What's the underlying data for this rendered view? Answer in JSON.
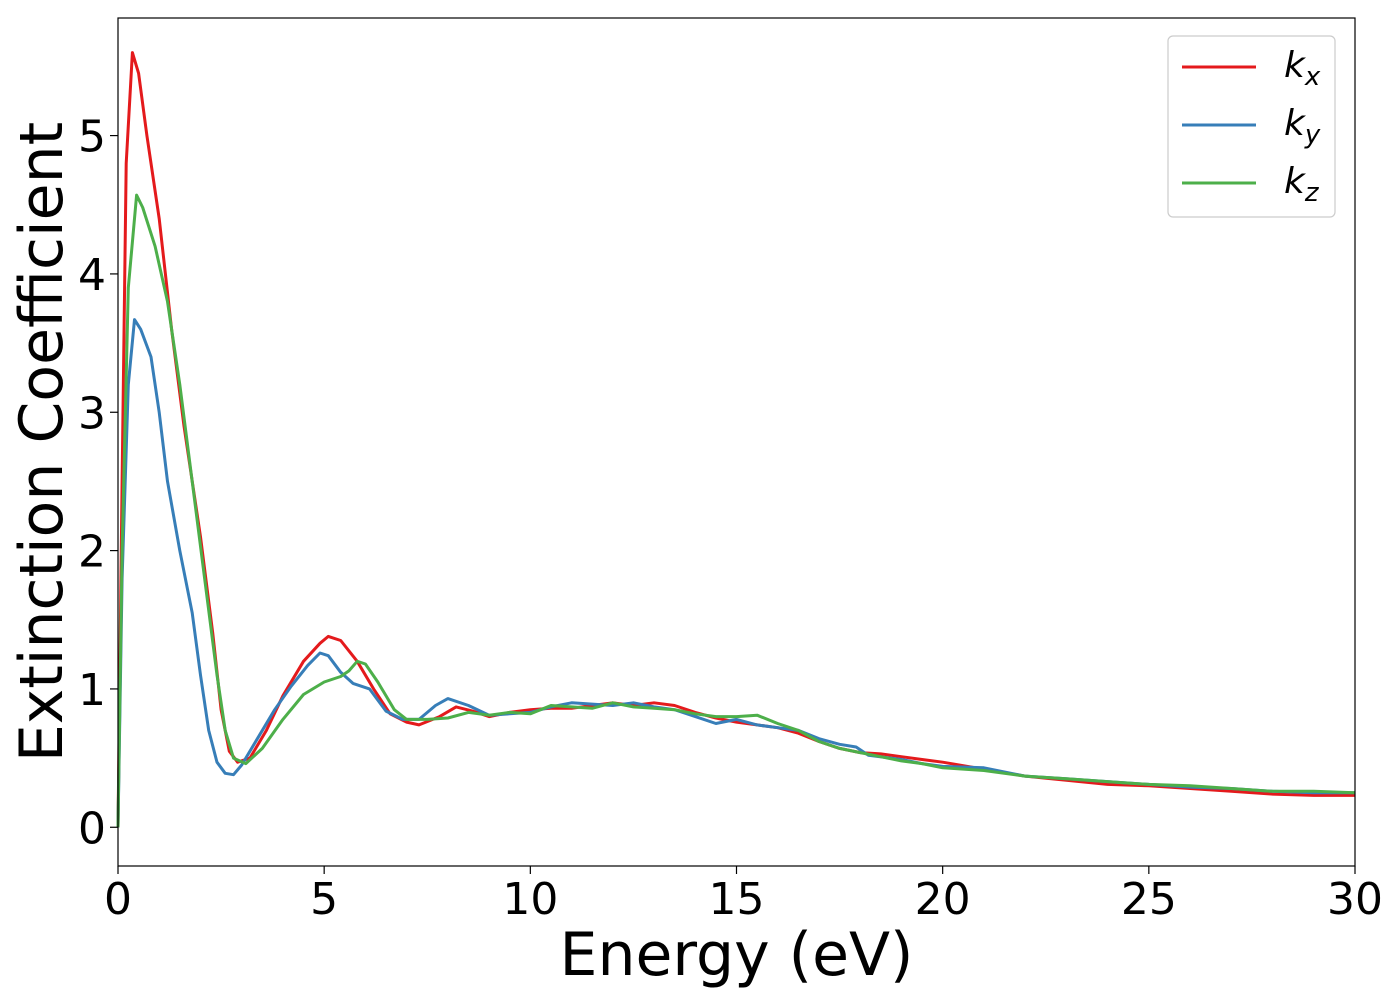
{
  "chart_data": {
    "type": "line",
    "xlabel": "Energy (eV)",
    "ylabel": "Extinction Coefficient",
    "xlim": [
      0,
      30
    ],
    "ylim": [
      -0.28,
      5.85
    ],
    "xticks": [
      0,
      5,
      10,
      15,
      20,
      25,
      30
    ],
    "yticks": [
      0,
      1,
      2,
      3,
      4,
      5
    ],
    "grid": false,
    "legend_position": "top-right",
    "series": [
      {
        "name": "k_x",
        "base": "k",
        "sub": "x",
        "color": "#e41a1c",
        "points": [
          [
            0,
            0
          ],
          [
            0.1,
            2.5
          ],
          [
            0.2,
            4.8
          ],
          [
            0.35,
            5.6
          ],
          [
            0.5,
            5.45
          ],
          [
            0.7,
            5.0
          ],
          [
            1.0,
            4.4
          ],
          [
            1.3,
            3.6
          ],
          [
            1.6,
            2.9
          ],
          [
            2.0,
            2.1
          ],
          [
            2.3,
            1.4
          ],
          [
            2.5,
            0.85
          ],
          [
            2.7,
            0.55
          ],
          [
            2.9,
            0.47
          ],
          [
            3.2,
            0.5
          ],
          [
            3.6,
            0.7
          ],
          [
            4.0,
            0.95
          ],
          [
            4.5,
            1.2
          ],
          [
            4.9,
            1.33
          ],
          [
            5.1,
            1.38
          ],
          [
            5.4,
            1.35
          ],
          [
            5.8,
            1.2
          ],
          [
            6.2,
            1.0
          ],
          [
            6.6,
            0.82
          ],
          [
            7.0,
            0.76
          ],
          [
            7.3,
            0.74
          ],
          [
            7.8,
            0.8
          ],
          [
            8.2,
            0.87
          ],
          [
            8.6,
            0.84
          ],
          [
            9.0,
            0.8
          ],
          [
            9.5,
            0.83
          ],
          [
            10.0,
            0.85
          ],
          [
            10.5,
            0.86
          ],
          [
            11.0,
            0.86
          ],
          [
            11.5,
            0.88
          ],
          [
            12.0,
            0.9
          ],
          [
            12.5,
            0.88
          ],
          [
            13.0,
            0.9
          ],
          [
            13.5,
            0.88
          ],
          [
            14.0,
            0.83
          ],
          [
            14.5,
            0.79
          ],
          [
            15.0,
            0.76
          ],
          [
            15.5,
            0.74
          ],
          [
            16.0,
            0.72
          ],
          [
            16.5,
            0.68
          ],
          [
            17.0,
            0.62
          ],
          [
            17.5,
            0.57
          ],
          [
            18.0,
            0.54
          ],
          [
            18.5,
            0.53
          ],
          [
            19.0,
            0.51
          ],
          [
            19.5,
            0.49
          ],
          [
            20.0,
            0.47
          ],
          [
            21.0,
            0.42
          ],
          [
            22.0,
            0.37
          ],
          [
            23.0,
            0.34
          ],
          [
            24.0,
            0.31
          ],
          [
            25.0,
            0.3
          ],
          [
            26.0,
            0.28
          ],
          [
            27.0,
            0.26
          ],
          [
            28.0,
            0.24
          ],
          [
            29.0,
            0.23
          ],
          [
            30.0,
            0.23
          ]
        ]
      },
      {
        "name": "k_y",
        "base": "k",
        "sub": "y",
        "color": "#377eb8",
        "points": [
          [
            0,
            0
          ],
          [
            0.1,
            1.8
          ],
          [
            0.25,
            3.2
          ],
          [
            0.4,
            3.67
          ],
          [
            0.55,
            3.6
          ],
          [
            0.8,
            3.4
          ],
          [
            1.0,
            3.0
          ],
          [
            1.2,
            2.5
          ],
          [
            1.5,
            2.0
          ],
          [
            1.8,
            1.55
          ],
          [
            2.0,
            1.1
          ],
          [
            2.2,
            0.7
          ],
          [
            2.4,
            0.47
          ],
          [
            2.6,
            0.39
          ],
          [
            2.8,
            0.38
          ],
          [
            3.0,
            0.45
          ],
          [
            3.4,
            0.65
          ],
          [
            3.8,
            0.85
          ],
          [
            4.2,
            1.02
          ],
          [
            4.6,
            1.17
          ],
          [
            4.9,
            1.26
          ],
          [
            5.1,
            1.24
          ],
          [
            5.4,
            1.12
          ],
          [
            5.7,
            1.04
          ],
          [
            6.1,
            1.0
          ],
          [
            6.5,
            0.84
          ],
          [
            6.9,
            0.78
          ],
          [
            7.3,
            0.78
          ],
          [
            7.7,
            0.88
          ],
          [
            8.0,
            0.93
          ],
          [
            8.5,
            0.88
          ],
          [
            9.0,
            0.81
          ],
          [
            9.5,
            0.82
          ],
          [
            10.0,
            0.83
          ],
          [
            10.5,
            0.87
          ],
          [
            11.0,
            0.9
          ],
          [
            11.5,
            0.89
          ],
          [
            12.0,
            0.88
          ],
          [
            12.5,
            0.9
          ],
          [
            13.0,
            0.87
          ],
          [
            13.5,
            0.85
          ],
          [
            14.0,
            0.8
          ],
          [
            14.5,
            0.75
          ],
          [
            15.0,
            0.78
          ],
          [
            15.5,
            0.74
          ],
          [
            16.0,
            0.72
          ],
          [
            16.5,
            0.7
          ],
          [
            17.0,
            0.64
          ],
          [
            17.5,
            0.6
          ],
          [
            17.9,
            0.58
          ],
          [
            18.2,
            0.52
          ],
          [
            19.0,
            0.49
          ],
          [
            19.5,
            0.46
          ],
          [
            20.0,
            0.44
          ],
          [
            21.0,
            0.43
          ],
          [
            22.0,
            0.37
          ],
          [
            23.0,
            0.35
          ],
          [
            24.0,
            0.33
          ],
          [
            25.0,
            0.31
          ],
          [
            26.0,
            0.29
          ],
          [
            27.0,
            0.28
          ],
          [
            28.0,
            0.26
          ],
          [
            29.0,
            0.25
          ],
          [
            30.0,
            0.25
          ]
        ]
      },
      {
        "name": "k_z",
        "base": "k",
        "sub": "z",
        "color": "#4daf4a",
        "points": [
          [
            0,
            0
          ],
          [
            0.1,
            2.0
          ],
          [
            0.25,
            3.9
          ],
          [
            0.45,
            4.57
          ],
          [
            0.6,
            4.48
          ],
          [
            0.9,
            4.2
          ],
          [
            1.2,
            3.8
          ],
          [
            1.5,
            3.2
          ],
          [
            1.8,
            2.5
          ],
          [
            2.1,
            1.8
          ],
          [
            2.4,
            1.1
          ],
          [
            2.6,
            0.7
          ],
          [
            2.8,
            0.5
          ],
          [
            3.1,
            0.46
          ],
          [
            3.5,
            0.57
          ],
          [
            4.0,
            0.78
          ],
          [
            4.5,
            0.96
          ],
          [
            5.0,
            1.05
          ],
          [
            5.4,
            1.09
          ],
          [
            5.6,
            1.13
          ],
          [
            5.8,
            1.2
          ],
          [
            6.0,
            1.18
          ],
          [
            6.3,
            1.05
          ],
          [
            6.7,
            0.85
          ],
          [
            7.0,
            0.78
          ],
          [
            7.5,
            0.78
          ],
          [
            8.0,
            0.79
          ],
          [
            8.5,
            0.83
          ],
          [
            9.0,
            0.81
          ],
          [
            9.5,
            0.83
          ],
          [
            10.0,
            0.82
          ],
          [
            10.5,
            0.88
          ],
          [
            11.0,
            0.87
          ],
          [
            11.5,
            0.86
          ],
          [
            12.0,
            0.9
          ],
          [
            12.5,
            0.87
          ],
          [
            13.0,
            0.86
          ],
          [
            13.5,
            0.85
          ],
          [
            14.0,
            0.82
          ],
          [
            14.5,
            0.8
          ],
          [
            15.0,
            0.8
          ],
          [
            15.5,
            0.81
          ],
          [
            16.0,
            0.75
          ],
          [
            16.5,
            0.7
          ],
          [
            17.0,
            0.62
          ],
          [
            17.5,
            0.57
          ],
          [
            18.0,
            0.54
          ],
          [
            18.5,
            0.51
          ],
          [
            19.0,
            0.48
          ],
          [
            19.5,
            0.46
          ],
          [
            20.0,
            0.43
          ],
          [
            21.0,
            0.41
          ],
          [
            22.0,
            0.37
          ],
          [
            23.0,
            0.35
          ],
          [
            24.0,
            0.33
          ],
          [
            25.0,
            0.31
          ],
          [
            26.0,
            0.3
          ],
          [
            27.0,
            0.28
          ],
          [
            28.0,
            0.26
          ],
          [
            29.0,
            0.26
          ],
          [
            30.0,
            0.25
          ]
        ]
      }
    ]
  }
}
